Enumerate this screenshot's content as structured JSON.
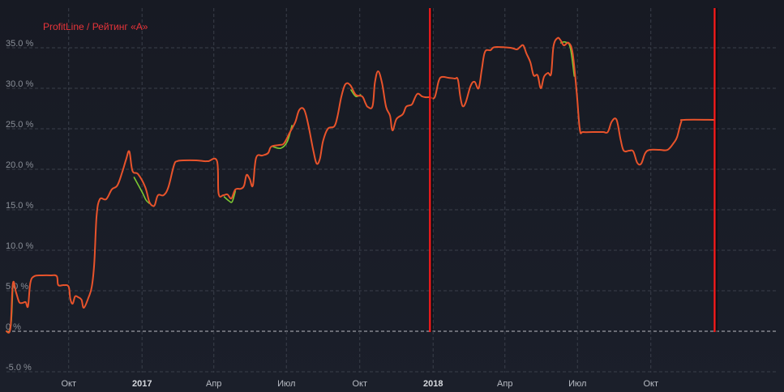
{
  "chart_data": {
    "type": "line",
    "title": "ProfitLine / Рейтинг «А»",
    "colors": {
      "title": "#e8343a",
      "background": "#191d27",
      "grid": "#3a3f4a",
      "zero_line": "#b9bcc2",
      "main_line": "#e8532b",
      "secondary_line": "#7cc832",
      "marker_line": "#ff1a1a"
    },
    "ylim": [
      -5.5,
      39
    ],
    "y_ticks": [
      {
        "value": 35,
        "label": "35.0 %"
      },
      {
        "value": 30,
        "label": "30.0 %"
      },
      {
        "value": 25,
        "label": "25.0 %"
      },
      {
        "value": 20,
        "label": "20.0 %"
      },
      {
        "value": 15,
        "label": "15.0 %"
      },
      {
        "value": 10,
        "label": "10.0 %"
      },
      {
        "value": 5,
        "label": "5.0 %"
      },
      {
        "value": 0,
        "label": "0 %"
      },
      {
        "value": -5,
        "label": "-5.0 %"
      }
    ],
    "x_range": [
      "2016-07-15",
      "2018-12-21"
    ],
    "x_ticks": [
      {
        "date": "2016-10-01",
        "label": "Окт",
        "bold": false
      },
      {
        "date": "2017-01-01",
        "label": "2017",
        "bold": true
      },
      {
        "date": "2017-04-01",
        "label": "Апр",
        "bold": false
      },
      {
        "date": "2017-07-01",
        "label": "Июл",
        "bold": false
      },
      {
        "date": "2017-10-01",
        "label": "Окт",
        "bold": false
      },
      {
        "date": "2018-01-01",
        "label": "2018",
        "bold": true
      },
      {
        "date": "2018-04-01",
        "label": "Апр",
        "bold": false
      },
      {
        "date": "2018-07-01",
        "label": "Июл",
        "bold": false
      },
      {
        "date": "2018-10-01",
        "label": "Окт",
        "bold": false
      }
    ],
    "grid": true,
    "markers": [
      {
        "date": "2017-12-28"
      },
      {
        "date": "2018-12-20"
      }
    ],
    "series": [
      {
        "points": [
          [
            "2016-07-15",
            0
          ],
          [
            "2016-07-20",
            0.4
          ],
          [
            "2016-07-23",
            5.9
          ],
          [
            "2016-07-27",
            4.8
          ],
          [
            "2016-07-31",
            3.6
          ],
          [
            "2016-08-04",
            3.5
          ],
          [
            "2016-08-08",
            3.6
          ],
          [
            "2016-08-11",
            3.1
          ],
          [
            "2016-08-14",
            6.0
          ],
          [
            "2016-08-19",
            6.8
          ],
          [
            "2016-08-29",
            6.9
          ],
          [
            "2016-09-08",
            6.9
          ],
          [
            "2016-09-16",
            6.8
          ],
          [
            "2016-09-18",
            5.7
          ],
          [
            "2016-09-25",
            5.7
          ],
          [
            "2016-10-01",
            5.5
          ],
          [
            "2016-10-03",
            4.0
          ],
          [
            "2016-10-06",
            3.4
          ],
          [
            "2016-10-09",
            4.3
          ],
          [
            "2016-10-13",
            4.2
          ],
          [
            "2016-10-17",
            3.9
          ],
          [
            "2016-10-20",
            2.9
          ],
          [
            "2016-10-26",
            4.2
          ],
          [
            "2016-10-30",
            5.5
          ],
          [
            "2016-11-02",
            8.3
          ],
          [
            "2016-11-05",
            14.2
          ],
          [
            "2016-11-09",
            16.3
          ],
          [
            "2016-11-17",
            16.3
          ],
          [
            "2016-11-24",
            17.5
          ],
          [
            "2016-12-01",
            18.0
          ],
          [
            "2016-12-07",
            19.6
          ],
          [
            "2016-12-12",
            21.2
          ],
          [
            "2016-12-16",
            22.2
          ],
          [
            "2016-12-20",
            19.8
          ],
          [
            "2016-12-27",
            19.4
          ],
          [
            "2017-01-05",
            17.8
          ],
          [
            "2017-01-10",
            16.0
          ],
          [
            "2017-01-14",
            15.5
          ],
          [
            "2017-01-17",
            15.6
          ],
          [
            "2017-01-21",
            16.8
          ],
          [
            "2017-01-28",
            16.8
          ],
          [
            "2017-02-03",
            17.8
          ],
          [
            "2017-02-10",
            20.5
          ],
          [
            "2017-02-14",
            21.0
          ],
          [
            "2017-02-22",
            21.1
          ],
          [
            "2017-03-10",
            21.1
          ],
          [
            "2017-03-20",
            21.0
          ],
          [
            "2017-03-25",
            21.0
          ],
          [
            "2017-04-05",
            21.0
          ],
          [
            "2017-04-07",
            17.0
          ],
          [
            "2017-04-13",
            16.8
          ],
          [
            "2017-04-18",
            16.9
          ],
          [
            "2017-04-23",
            16.4
          ],
          [
            "2017-04-28",
            17.5
          ],
          [
            "2017-05-05",
            17.6
          ],
          [
            "2017-05-09",
            18.0
          ],
          [
            "2017-05-12",
            19.3
          ],
          [
            "2017-05-16",
            18.8
          ],
          [
            "2017-05-20",
            18.0
          ],
          [
            "2017-05-24",
            21.4
          ],
          [
            "2017-06-01",
            21.7
          ],
          [
            "2017-06-08",
            22.0
          ],
          [
            "2017-06-12",
            22.8
          ],
          [
            "2017-06-22",
            23.0
          ],
          [
            "2017-06-28",
            23.2
          ],
          [
            "2017-07-05",
            24.5
          ],
          [
            "2017-07-12",
            25.8
          ],
          [
            "2017-07-17",
            27.3
          ],
          [
            "2017-07-23",
            27.4
          ],
          [
            "2017-07-28",
            25.7
          ],
          [
            "2017-08-04",
            22.2
          ],
          [
            "2017-08-08",
            20.7
          ],
          [
            "2017-08-12",
            21.3
          ],
          [
            "2017-08-16",
            23.5
          ],
          [
            "2017-08-22",
            25.0
          ],
          [
            "2017-08-30",
            25.3
          ],
          [
            "2017-09-03",
            26.5
          ],
          [
            "2017-09-08",
            29.0
          ],
          [
            "2017-09-13",
            30.5
          ],
          [
            "2017-09-19",
            30.4
          ],
          [
            "2017-09-26",
            29.2
          ],
          [
            "2017-10-04",
            29.0
          ],
          [
            "2017-10-08",
            28.2
          ],
          [
            "2017-10-11",
            27.7
          ],
          [
            "2017-10-17",
            27.8
          ],
          [
            "2017-10-20",
            30.7
          ],
          [
            "2017-10-24",
            32.1
          ],
          [
            "2017-10-29",
            30.6
          ],
          [
            "2017-11-03",
            27.7
          ],
          [
            "2017-11-08",
            26.6
          ],
          [
            "2017-11-11",
            24.8
          ],
          [
            "2017-11-16",
            26.2
          ],
          [
            "2017-11-24",
            26.8
          ],
          [
            "2017-11-28",
            27.7
          ],
          [
            "2017-12-03",
            27.9
          ],
          [
            "2017-12-06",
            28.1
          ],
          [
            "2017-12-12",
            29.3
          ],
          [
            "2017-12-18",
            29.0
          ],
          [
            "2017-12-22",
            28.9
          ],
          [
            "2017-12-28",
            28.9
          ],
          [
            "2018-01-03",
            28.9
          ],
          [
            "2018-01-08",
            30.9
          ],
          [
            "2018-01-12",
            31.4
          ],
          [
            "2018-01-20",
            31.3
          ],
          [
            "2018-01-28",
            31.2
          ],
          [
            "2018-02-01",
            31.1
          ],
          [
            "2018-02-04",
            29.0
          ],
          [
            "2018-02-07",
            27.8
          ],
          [
            "2018-02-11",
            28.3
          ],
          [
            "2018-02-17",
            30.3
          ],
          [
            "2018-02-22",
            30.8
          ],
          [
            "2018-02-27",
            30.0
          ],
          [
            "2018-03-03",
            32.3
          ],
          [
            "2018-03-07",
            34.5
          ],
          [
            "2018-03-14",
            34.7
          ],
          [
            "2018-03-17",
            35.0
          ],
          [
            "2018-03-22",
            35.1
          ],
          [
            "2018-04-08",
            35.0
          ],
          [
            "2018-04-16",
            34.8
          ],
          [
            "2018-04-20",
            35.1
          ],
          [
            "2018-04-24",
            35.3
          ],
          [
            "2018-04-28",
            34.3
          ],
          [
            "2018-05-03",
            33.2
          ],
          [
            "2018-05-07",
            31.6
          ],
          [
            "2018-05-12",
            31.6
          ],
          [
            "2018-05-16",
            30.0
          ],
          [
            "2018-05-20",
            31.4
          ],
          [
            "2018-05-25",
            31.9
          ],
          [
            "2018-05-29",
            31.8
          ],
          [
            "2018-06-01",
            35.2
          ],
          [
            "2018-06-06",
            36.2
          ],
          [
            "2018-06-10",
            35.9
          ],
          [
            "2018-06-14",
            35.3
          ],
          [
            "2018-06-20",
            35.6
          ],
          [
            "2018-06-25",
            34.3
          ],
          [
            "2018-06-30",
            29.5
          ],
          [
            "2018-07-04",
            24.9
          ],
          [
            "2018-07-08",
            24.6
          ],
          [
            "2018-07-20",
            24.6
          ],
          [
            "2018-08-02",
            24.6
          ],
          [
            "2018-08-08",
            24.6
          ],
          [
            "2018-08-13",
            25.9
          ],
          [
            "2018-08-19",
            26.1
          ],
          [
            "2018-08-24",
            23.7
          ],
          [
            "2018-08-28",
            22.3
          ],
          [
            "2018-09-04",
            22.3
          ],
          [
            "2018-09-09",
            22.2
          ],
          [
            "2018-09-14",
            20.8
          ],
          [
            "2018-09-19",
            20.7
          ],
          [
            "2018-09-24",
            22.0
          ],
          [
            "2018-09-30",
            22.4
          ],
          [
            "2018-10-12",
            22.4
          ],
          [
            "2018-10-22",
            22.4
          ],
          [
            "2018-10-30",
            23.3
          ],
          [
            "2018-11-03",
            24.0
          ],
          [
            "2018-11-08",
            25.8
          ],
          [
            "2018-11-12",
            26.1
          ],
          [
            "2018-12-20",
            26.1
          ]
        ]
      },
      {
        "segments": [
          [
            [
              "2016-07-15",
              0
            ],
            [
              "2016-07-18",
              -0.1
            ],
            [
              "2016-07-21",
              1.2
            ],
            [
              "2016-07-23",
              5.8
            ]
          ],
          [
            [
              "2016-12-22",
              19.0
            ],
            [
              "2017-01-01",
              17.2
            ],
            [
              "2017-01-06",
              16.2
            ],
            [
              "2017-01-10",
              15.8
            ]
          ],
          [
            [
              "2017-04-14",
              16.6
            ],
            [
              "2017-04-20",
              16.1
            ],
            [
              "2017-04-24",
              16.0
            ],
            [
              "2017-04-28",
              17.3
            ]
          ],
          [
            [
              "2017-06-14",
              22.8
            ],
            [
              "2017-06-24",
              22.6
            ],
            [
              "2017-07-02",
              23.4
            ],
            [
              "2017-07-08",
              25.4
            ]
          ],
          [
            [
              "2017-09-20",
              29.8
            ],
            [
              "2017-09-26",
              29.0
            ],
            [
              "2017-10-02",
              29.2
            ]
          ],
          [
            [
              "2018-06-10",
              35.6
            ],
            [
              "2018-06-16",
              35.7
            ],
            [
              "2018-06-22",
              35.0
            ],
            [
              "2018-06-27",
              31.5
            ]
          ]
        ]
      }
    ]
  }
}
